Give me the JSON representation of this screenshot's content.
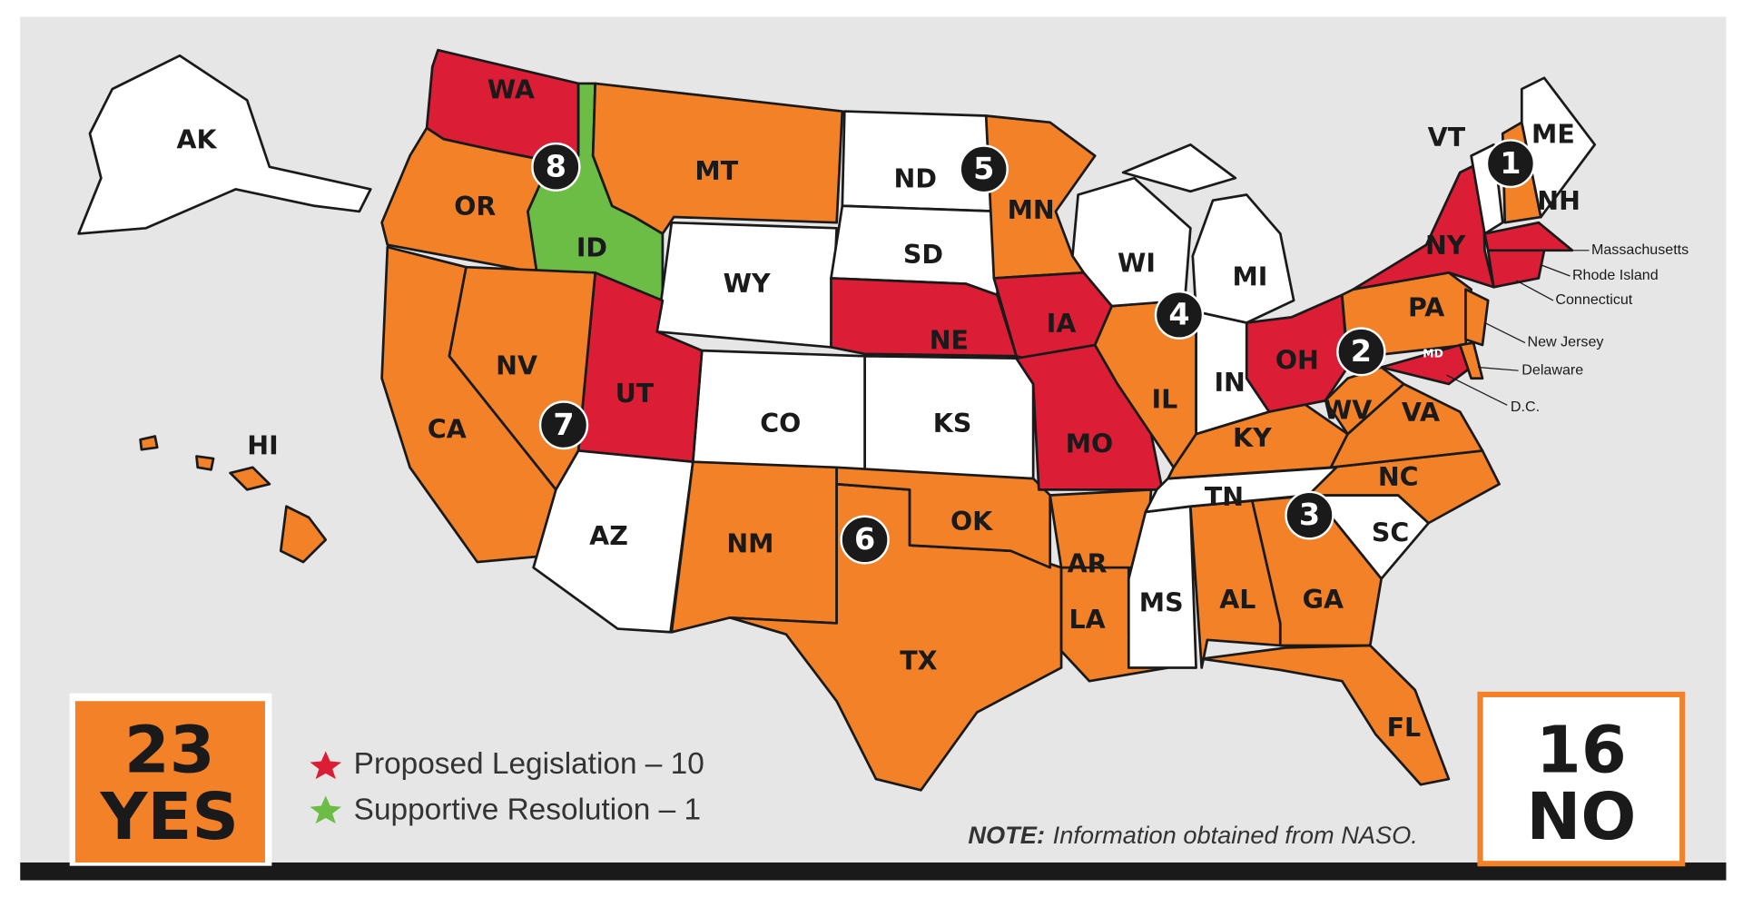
{
  "state_labels": [
    "WA",
    "OR",
    "ID",
    "MT",
    "WY",
    "ND",
    "SD",
    "NE",
    "KS",
    "CO",
    "UT",
    "NV",
    "CA",
    "AZ",
    "NM",
    "TX",
    "OK",
    "MN",
    "IA",
    "MO",
    "AR",
    "LA",
    "MS",
    "AL",
    "GA",
    "FL",
    "SC",
    "NC",
    "TN",
    "KY",
    "VA",
    "WV",
    "OH",
    "IN",
    "IL",
    "WI",
    "MI",
    "PA",
    "NY",
    "VT",
    "NH",
    "ME",
    "AK",
    "HI",
    "MD"
  ],
  "circle_numbers": [
    1,
    2,
    3,
    4,
    5,
    6,
    7,
    8
  ],
  "callouts": [
    "Massachusetts",
    "Rhode Island",
    "Connecticut",
    "New Jersey",
    "Delaware",
    "D.C."
  ],
  "legend": [
    "Proposed Legislation – 10",
    "Supportive Resolution – 1"
  ],
  "yes_box": {
    "count": 23,
    "label": "YES"
  },
  "no_box": {
    "count": 16,
    "label": "NO"
  },
  "note": {
    "lead": "NOTE:",
    "text": "Information obtained from NASO."
  }
}
